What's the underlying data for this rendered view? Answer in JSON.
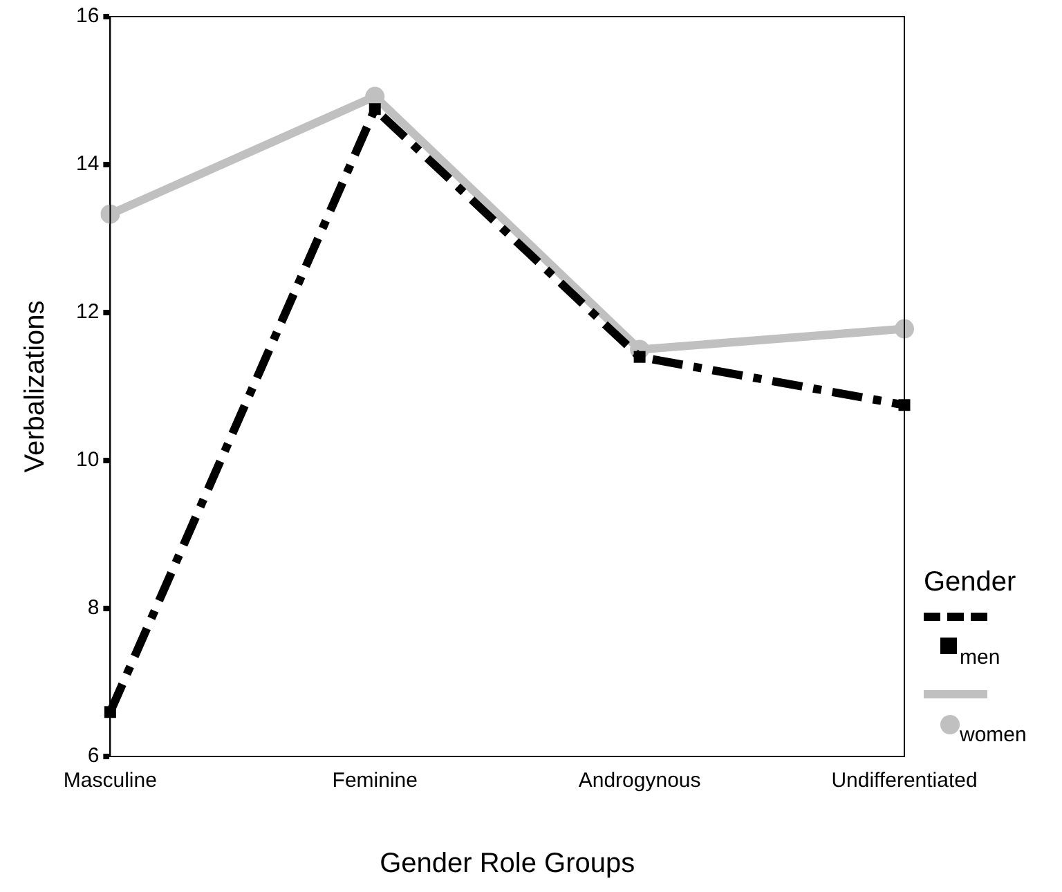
{
  "chart_data": {
    "type": "line",
    "xlabel": "Gender Role Groups",
    "ylabel": "Verbalizations",
    "legend_title": "Gender",
    "legend": "right",
    "categories": [
      "Masculine",
      "Feminine",
      "Androgynous",
      "Undifferentiated"
    ],
    "ylim": [
      6,
      16
    ],
    "yticks": [
      6,
      8,
      10,
      12,
      14,
      16
    ],
    "grid": false,
    "series": [
      {
        "name": "men",
        "color": "#000000",
        "marker": "square",
        "line_style": "dashdot",
        "values": [
          6.6,
          14.75,
          11.4,
          10.75
        ]
      },
      {
        "name": "women",
        "color": "#c0c0c0",
        "marker": "circle",
        "line_style": "solid",
        "values": [
          13.33,
          14.92,
          11.5,
          11.78
        ]
      }
    ]
  }
}
